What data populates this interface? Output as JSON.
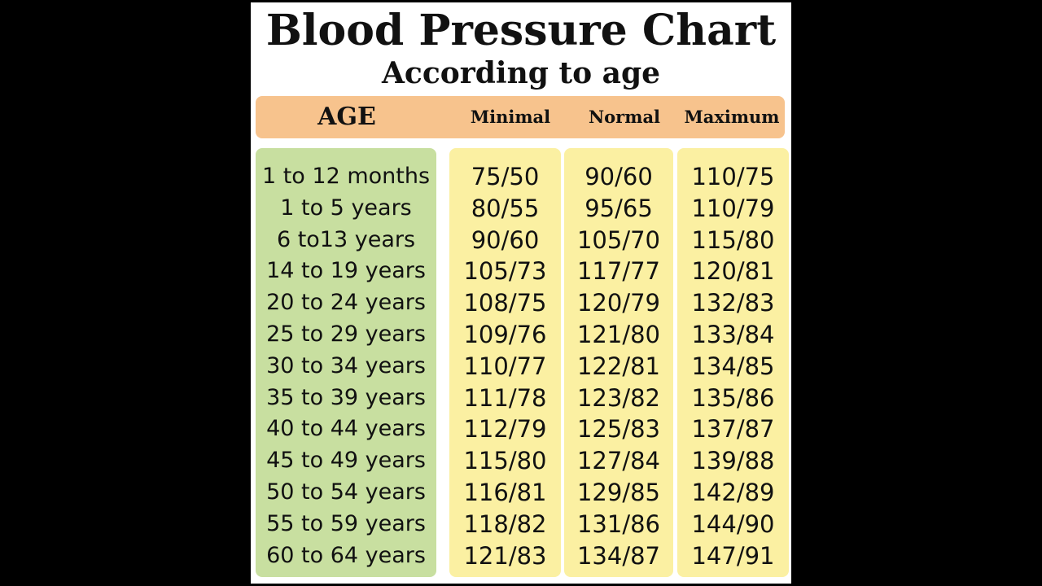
{
  "chart_data": {
    "type": "table",
    "title": "Blood Pressure Chart",
    "subtitle": "According to age",
    "columns": [
      "AGE",
      "Minimal",
      "Normal",
      "Maximum"
    ],
    "rows": [
      {
        "age": "1 to 12 months",
        "minimal": "75/50",
        "normal": "90/60",
        "maximum": "110/75"
      },
      {
        "age": "1 to 5 years",
        "minimal": "80/55",
        "normal": "95/65",
        "maximum": "110/79"
      },
      {
        "age": "6 to13 years",
        "minimal": "90/60",
        "normal": "105/70",
        "maximum": "115/80"
      },
      {
        "age": "14 to 19 years",
        "minimal": "105/73",
        "normal": "117/77",
        "maximum": "120/81"
      },
      {
        "age": "20 to 24 years",
        "minimal": "108/75",
        "normal": "120/79",
        "maximum": "132/83"
      },
      {
        "age": "25 to 29 years",
        "minimal": "109/76",
        "normal": "121/80",
        "maximum": "133/84"
      },
      {
        "age": "30 to 34 years",
        "minimal": "110/77",
        "normal": "122/81",
        "maximum": "134/85"
      },
      {
        "age": "35 to 39 years",
        "minimal": "111/78",
        "normal": "123/82",
        "maximum": "135/86"
      },
      {
        "age": "40 to 44 years",
        "minimal": "112/79",
        "normal": "125/83",
        "maximum": "137/87"
      },
      {
        "age": "45 to 49 years",
        "minimal": "115/80",
        "normal": "127/84",
        "maximum": "139/88"
      },
      {
        "age": "50 to 54 years",
        "minimal": "116/81",
        "normal": "129/85",
        "maximum": "142/89"
      },
      {
        "age": "55 to 59 years",
        "minimal": "118/82",
        "normal": "131/86",
        "maximum": "144/90"
      },
      {
        "age": "60 to 64 years",
        "minimal": "121/83",
        "normal": "134/87",
        "maximum": "147/91"
      }
    ],
    "colors": {
      "header_band": "#f7c38d",
      "age_column": "#c8dfa0",
      "value_columns": "#fbf0a2",
      "background": "#000000",
      "card": "#ffffff"
    }
  }
}
